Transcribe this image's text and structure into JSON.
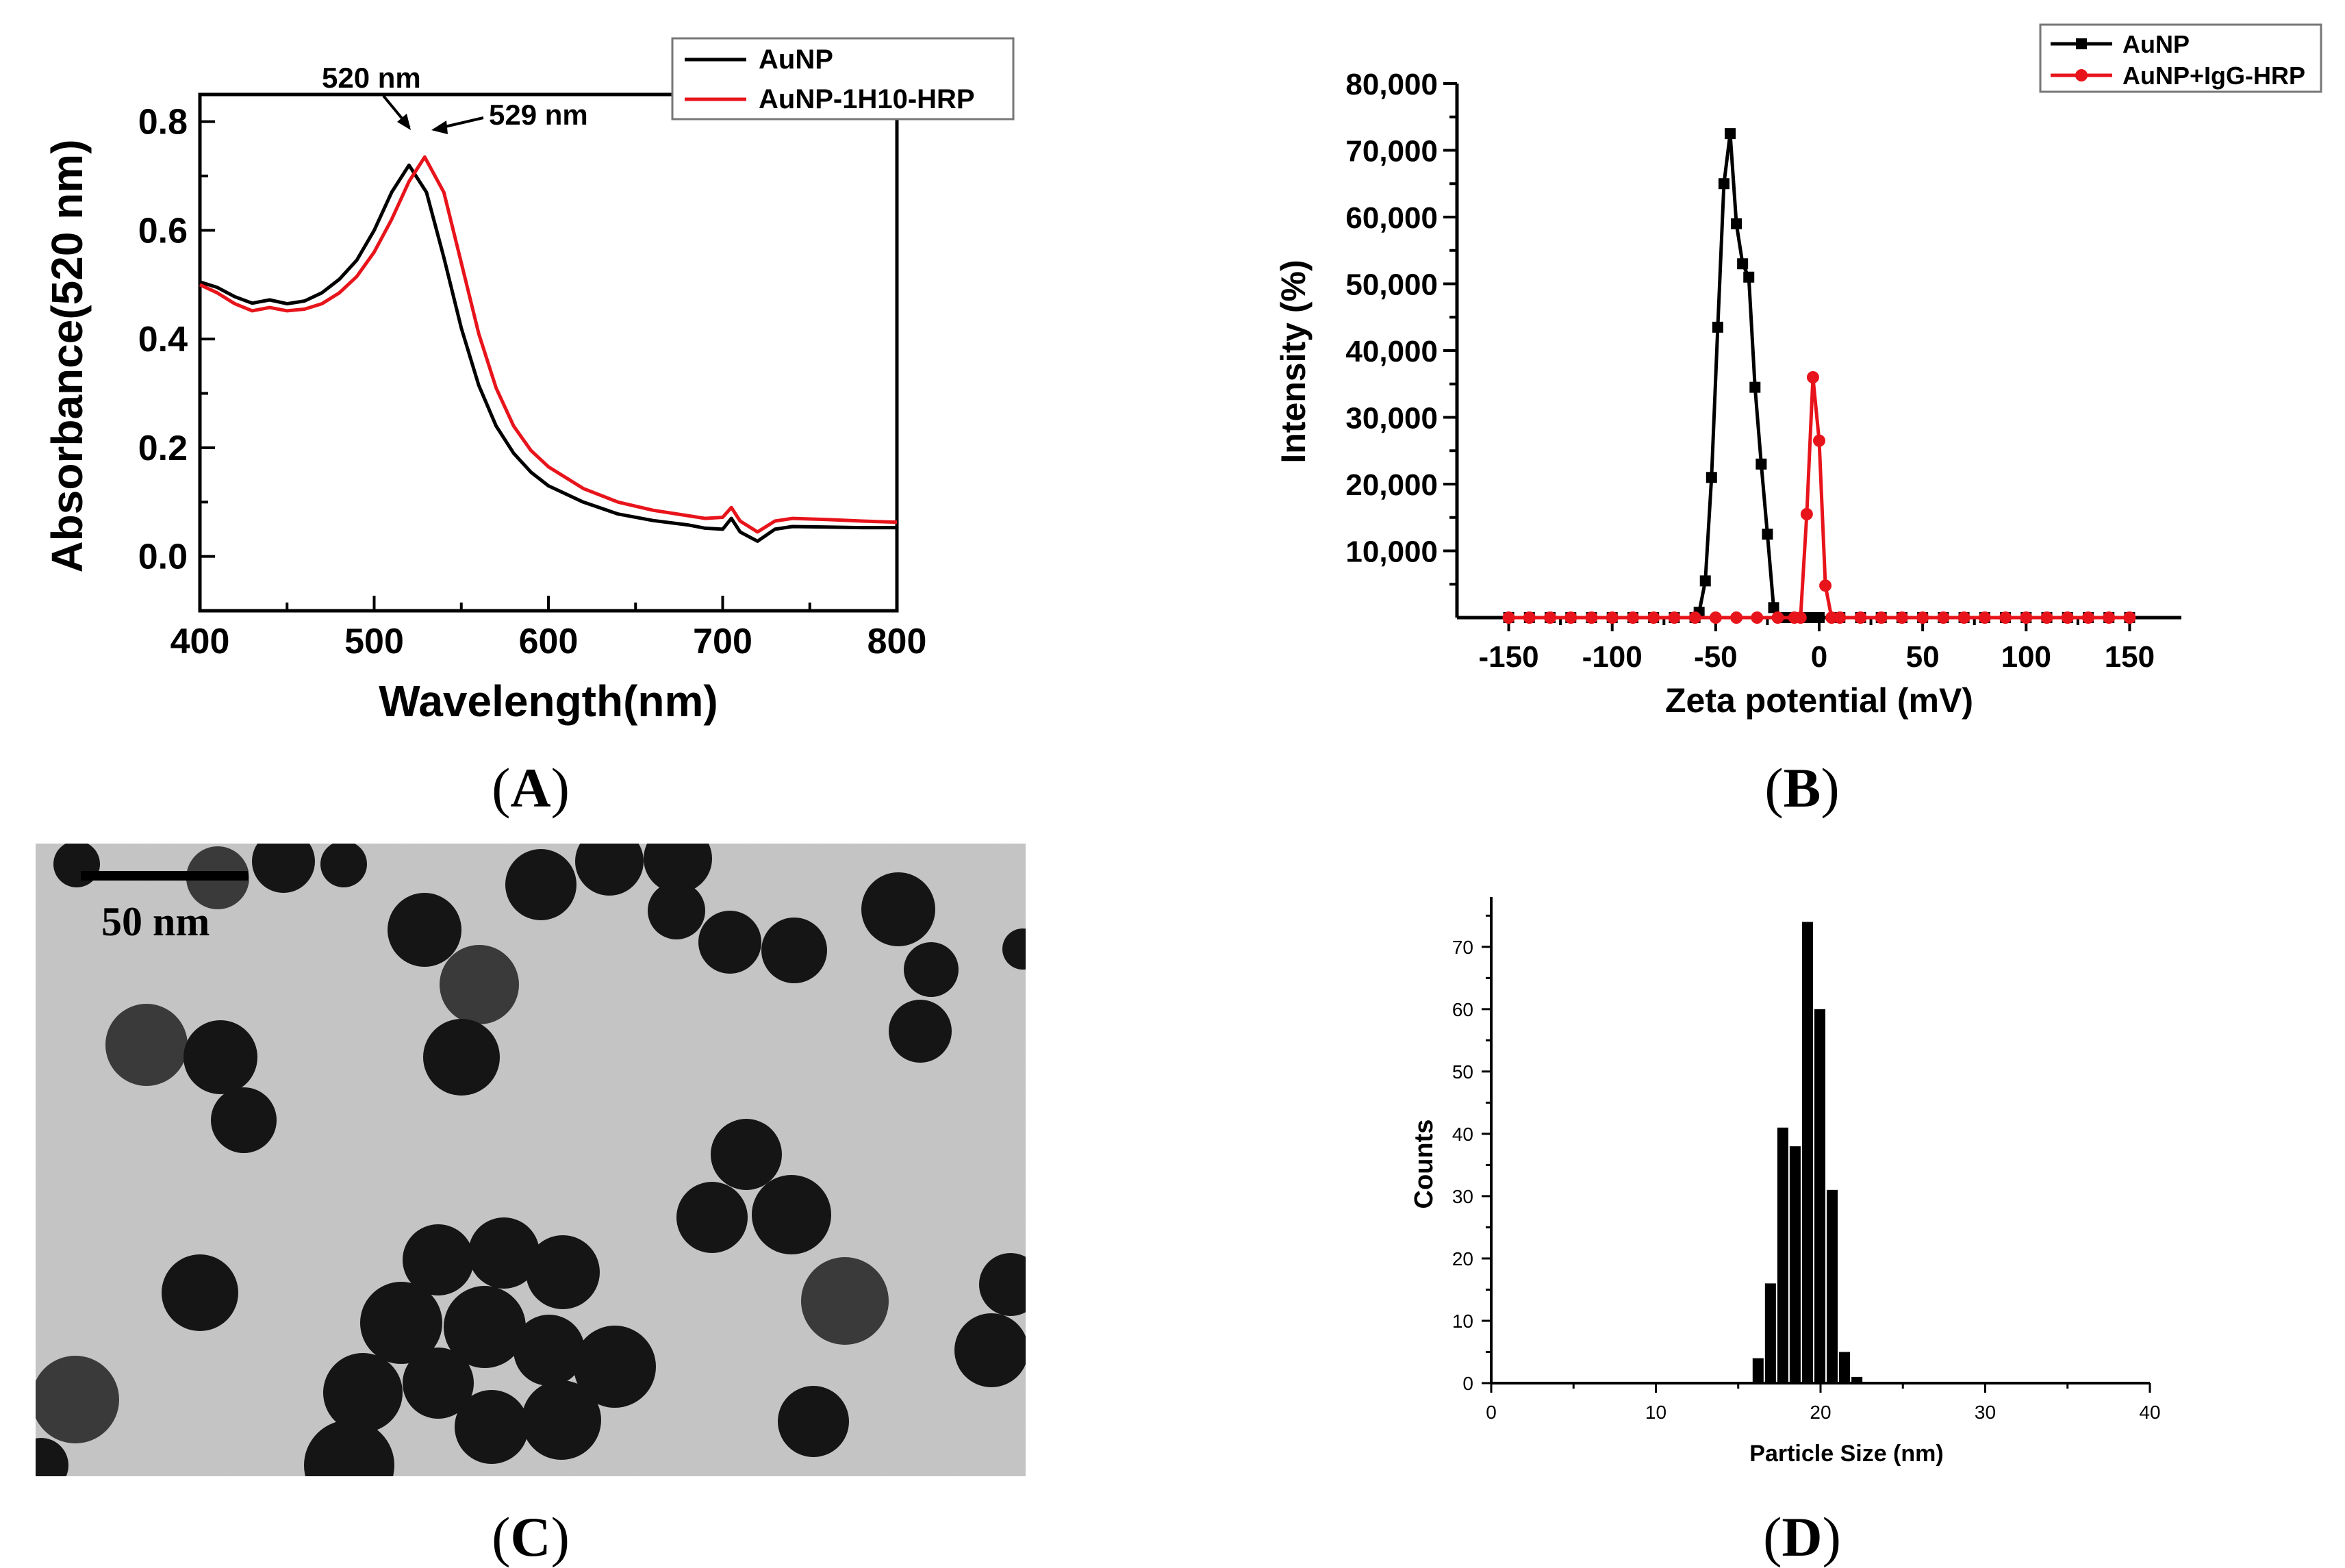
{
  "panel_captions": [
    "(",
    "A",
    ")",
    "(",
    "B",
    ")",
    "(",
    "C",
    ")",
    "(",
    "D",
    ")"
  ],
  "colors": {
    "black": "#000000",
    "red": "#e8141b",
    "tem_background": "#c6c6c6",
    "tem_particle": "#151515"
  },
  "tem": {
    "scale_bar_label": "50 nm"
  },
  "chart_data": [
    {
      "id": "A",
      "type": "line",
      "xlabel": "Wavelength(nm)",
      "ylabel": "Absorbance(520 nm)",
      "xlim": [
        400,
        800
      ],
      "ylim": [
        -0.1,
        0.85
      ],
      "xticks": [
        "400",
        "500",
        "600",
        "700",
        "800"
      ],
      "yticks": [
        "0.0",
        "0.2",
        "0.4",
        "0.6",
        "0.8"
      ],
      "legend_position": "top-right",
      "annotations": [
        {
          "text": "520 nm",
          "x": 520,
          "y": 0.72
        },
        {
          "text": "529 nm",
          "x": 529,
          "y": 0.735
        }
      ],
      "series": [
        {
          "name": "AuNP",
          "color": "#000000",
          "x": [
            400,
            410,
            420,
            430,
            440,
            450,
            460,
            470,
            480,
            490,
            500,
            510,
            520,
            530,
            540,
            550,
            560,
            570,
            580,
            590,
            600,
            620,
            640,
            660,
            680,
            690,
            700,
            705,
            710,
            720,
            730,
            740,
            760,
            780,
            800
          ],
          "y": [
            0.505,
            0.495,
            0.478,
            0.466,
            0.472,
            0.465,
            0.47,
            0.485,
            0.51,
            0.545,
            0.6,
            0.67,
            0.72,
            0.67,
            0.55,
            0.42,
            0.315,
            0.24,
            0.19,
            0.155,
            0.13,
            0.1,
            0.078,
            0.066,
            0.058,
            0.052,
            0.05,
            0.07,
            0.045,
            0.028,
            0.05,
            0.055,
            0.054,
            0.053,
            0.053
          ]
        },
        {
          "name": "AuNP-1H10-HRP",
          "color": "#e8141b",
          "x": [
            400,
            410,
            420,
            430,
            440,
            450,
            460,
            470,
            480,
            490,
            500,
            510,
            520,
            529,
            540,
            550,
            560,
            570,
            580,
            590,
            600,
            620,
            640,
            660,
            680,
            690,
            700,
            705,
            710,
            720,
            730,
            740,
            760,
            780,
            800
          ],
          "y": [
            0.5,
            0.485,
            0.465,
            0.452,
            0.458,
            0.452,
            0.455,
            0.465,
            0.485,
            0.515,
            0.56,
            0.62,
            0.69,
            0.735,
            0.67,
            0.54,
            0.41,
            0.31,
            0.24,
            0.195,
            0.165,
            0.125,
            0.1,
            0.085,
            0.075,
            0.07,
            0.072,
            0.09,
            0.065,
            0.045,
            0.065,
            0.07,
            0.068,
            0.065,
            0.063
          ]
        }
      ]
    },
    {
      "id": "B",
      "type": "line",
      "xlabel": "Zeta potential (mV)",
      "ylabel": "Intensity (%)",
      "xlim": [
        -175,
        175
      ],
      "ylim": [
        0,
        80000
      ],
      "xticks": [
        "-150",
        "-100",
        "-50",
        "0",
        "50",
        "100",
        "150"
      ],
      "yticks": [
        "10,000",
        "20,000",
        "30,000",
        "40,000",
        "50,000",
        "60,000",
        "70,000",
        "80,000"
      ],
      "legend_position": "top-right",
      "series": [
        {
          "name": "AuNP",
          "color": "#000000",
          "x": [
            -150,
            -140,
            -130,
            -120,
            -110,
            -100,
            -90,
            -80,
            -70,
            -60,
            -58,
            -55,
            -52,
            -49,
            -46,
            -43,
            -40,
            -37,
            -34,
            -31,
            -28,
            -25,
            -22,
            -19,
            -15,
            -10,
            -5,
            0,
            10,
            20,
            30,
            40,
            50,
            60,
            70,
            80,
            90,
            100,
            110,
            120,
            130,
            140,
            150
          ],
          "y": [
            0,
            0,
            0,
            0,
            0,
            0,
            0,
            0,
            0,
            0,
            800,
            5500,
            21000,
            43500,
            65000,
            72500,
            59000,
            53000,
            51000,
            34500,
            23000,
            12500,
            1500,
            0,
            0,
            0,
            0,
            0,
            0,
            0,
            0,
            0,
            0,
            0,
            0,
            0,
            0,
            0,
            0,
            0,
            0,
            0,
            0
          ]
        },
        {
          "name": "AuNP+IgG-HRP",
          "color": "#e8141b",
          "x": [
            -150,
            -140,
            -130,
            -120,
            -110,
            -100,
            -90,
            -80,
            -70,
            -60,
            -50,
            -40,
            -30,
            -20,
            -12,
            -9,
            -6,
            -3,
            0,
            3,
            6,
            10,
            20,
            30,
            40,
            50,
            60,
            70,
            80,
            90,
            100,
            110,
            120,
            130,
            140,
            150
          ],
          "y": [
            0,
            0,
            0,
            0,
            0,
            0,
            0,
            0,
            0,
            0,
            0,
            0,
            0,
            0,
            0,
            0,
            15500,
            36000,
            26500,
            4800,
            0,
            0,
            0,
            0,
            0,
            0,
            0,
            0,
            0,
            0,
            0,
            0,
            0,
            0,
            0,
            0
          ]
        }
      ]
    },
    {
      "id": "D",
      "type": "bar",
      "xlabel": "Particle Size (nm)",
      "ylabel": "Counts",
      "xlim": [
        0,
        40
      ],
      "ylim": [
        0,
        78
      ],
      "xticks": [
        "0",
        "10",
        "20",
        "30",
        "40"
      ],
      "yticks": [
        "0",
        "10",
        "20",
        "30",
        "40",
        "50",
        "60",
        "70"
      ],
      "bin_width": 0.75,
      "bins": [
        16.25,
        17.0,
        17.75,
        18.5,
        19.25,
        20.0,
        20.75,
        21.5,
        22.25,
        23.0,
        23.75
      ],
      "values": [
        4,
        16,
        41,
        38,
        74,
        60,
        31,
        5,
        1,
        0,
        0
      ]
    }
  ]
}
